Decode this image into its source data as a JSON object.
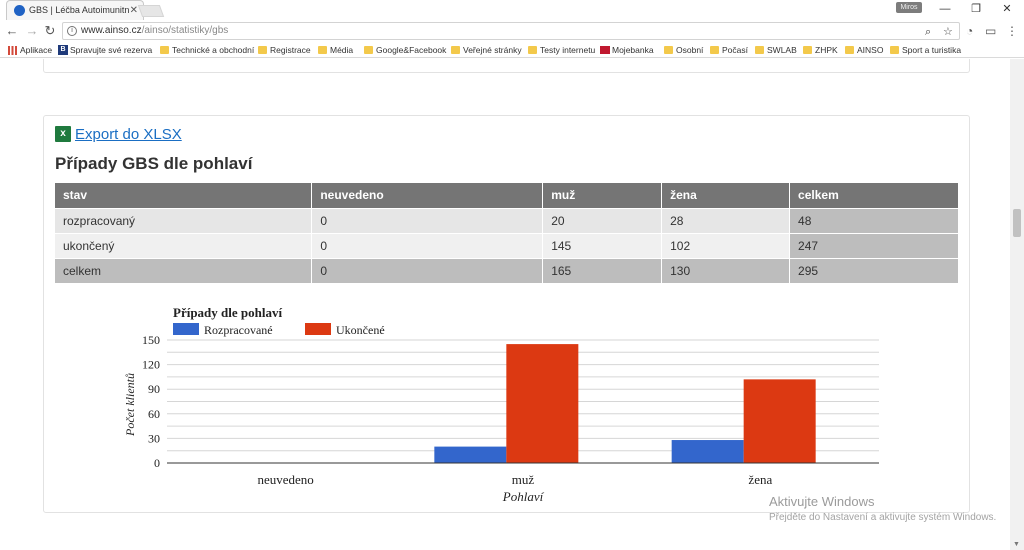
{
  "browser": {
    "tab_title": "GBS | Léčba Autoimunitn",
    "user_badge": "Miros",
    "url_host": "www.ainso.cz",
    "url_path": "/ainso/statistiky/gbs",
    "bookmarks": [
      {
        "label": "Aplikace",
        "icon": "apps-icon"
      },
      {
        "label": "Spravujte své rezerva",
        "icon": "booking-icon"
      },
      {
        "label": "Technické a obchodní",
        "icon": "folder-icon"
      },
      {
        "label": "Registrace",
        "icon": "folder-icon"
      },
      {
        "label": "Média",
        "icon": "folder-icon"
      },
      {
        "label": "Google&Facebook",
        "icon": "folder-icon"
      },
      {
        "label": "Veřejné stránky",
        "icon": "folder-icon"
      },
      {
        "label": "Testy internetu",
        "icon": "folder-icon"
      },
      {
        "label": "Mojebanka",
        "icon": "bank-icon"
      },
      {
        "label": "Osobní",
        "icon": "folder-icon"
      },
      {
        "label": "Počasí",
        "icon": "folder-icon"
      },
      {
        "label": "SWLAB",
        "icon": "folder-icon"
      },
      {
        "label": "ZHPK",
        "icon": "folder-icon"
      },
      {
        "label": "AINSO",
        "icon": "folder-icon"
      },
      {
        "label": "Sport a turistika",
        "icon": "folder-icon"
      }
    ]
  },
  "page": {
    "export_label": "Export do XLSX",
    "title": "Případy GBS dle pohlaví",
    "table": {
      "headers": [
        "stav",
        "neuvedeno",
        "muž",
        "žena",
        "celkem"
      ],
      "rows": [
        [
          "rozpracovaný",
          "0",
          "20",
          "28",
          "48"
        ],
        [
          "ukončený",
          "0",
          "145",
          "102",
          "247"
        ],
        [
          "celkem",
          "0",
          "165",
          "130",
          "295"
        ]
      ]
    }
  },
  "chart_data": {
    "type": "bar",
    "title": "Případy dle pohlaví",
    "xlabel": "Pohlaví",
    "ylabel": "Počet klientů",
    "categories": [
      "neuvedeno",
      "muž",
      "žena"
    ],
    "series": [
      {
        "name": "Rozpracované",
        "values": [
          0,
          20,
          28
        ],
        "color": "#3366cc"
      },
      {
        "name": "Ukončené",
        "values": [
          0,
          145,
          102
        ],
        "color": "#dc3912"
      }
    ],
    "ylim": [
      0,
      150
    ],
    "yticks": [
      0,
      30,
      60,
      90,
      120,
      150
    ],
    "grid": true,
    "legend": "top-left"
  },
  "os_overlay": {
    "line1": "Aktivujte Windows",
    "line2": "Přejděte do Nastavení a aktivujte systém Windows."
  }
}
